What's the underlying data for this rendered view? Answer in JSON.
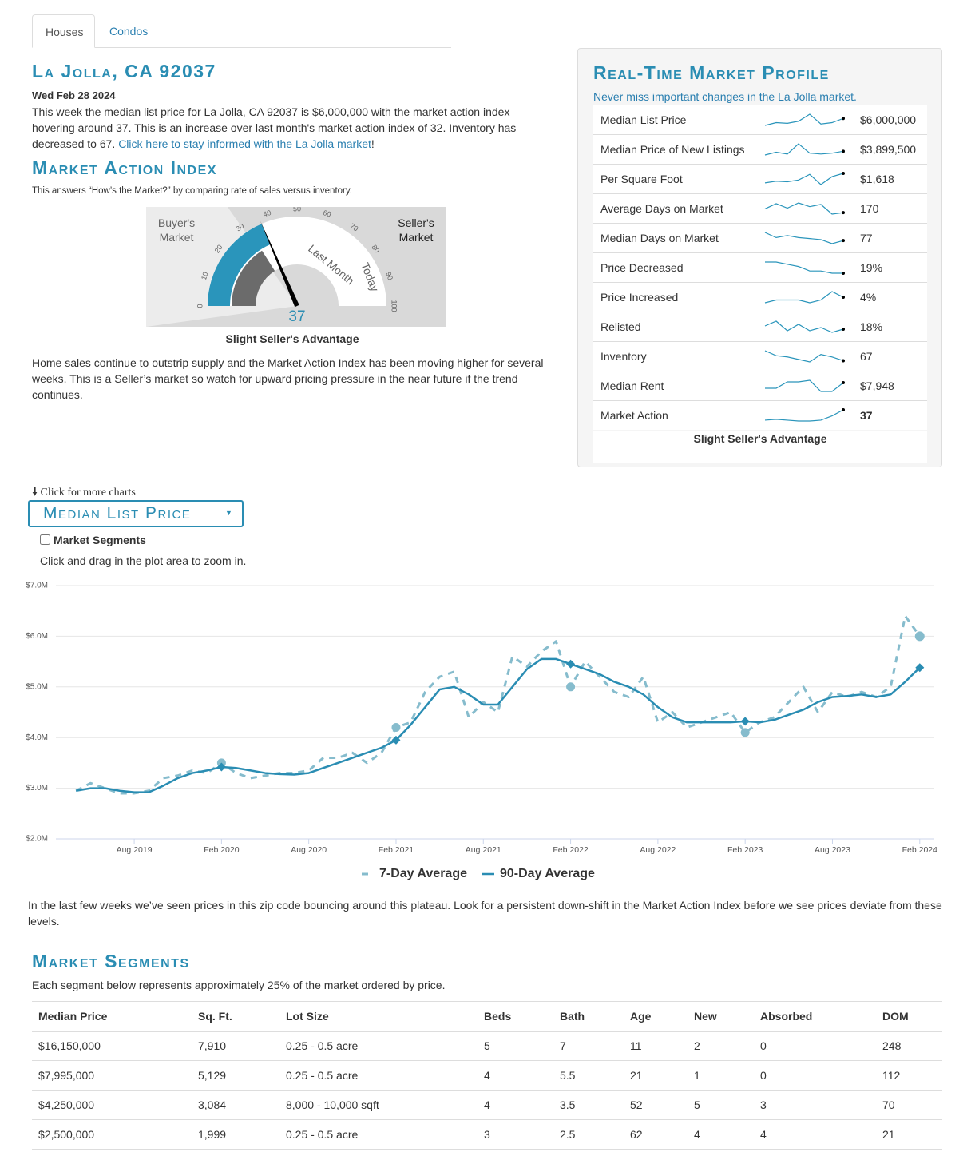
{
  "tabs": [
    "Houses",
    "Condos"
  ],
  "header": {
    "title": "La Jolla, CA 92037",
    "date": "Wed Feb 28 2024",
    "intro": "This week the median list price for La Jolla, CA 92037 is $6,000,000 with the market action index hovering around 37. This is an increase over last month's market action index of 32. Inventory has decreased to 67.",
    "link": "Click here to stay informed with the La Jolla market",
    "link_end": "!"
  },
  "market_action": {
    "heading": "Market Action Index",
    "description": "This answers “How’s the Market?” by comparing rate of sales versus inventory.",
    "gauge": {
      "left_label": "Buyer's Market",
      "right_label": "Seller's Market",
      "ticks": [
        0,
        10,
        20,
        30,
        40,
        50,
        60,
        70,
        80,
        90,
        100
      ],
      "last_month_label": "Last Month",
      "today_label": "Today",
      "last_month": 32,
      "today": 37
    },
    "verdict": "Slight Seller's Advantage",
    "summary": "Home sales continue to outstrip supply and the Market Action Index has been moving higher for several weeks. This is a Seller’s market so watch for upward pricing pressure in the near future if the trend continues."
  },
  "profile": {
    "title": "Real-Time Market Profile",
    "subtitle": "Never miss important changes in the La Jolla market.",
    "rows": [
      {
        "label": "Median List Price",
        "value": "$6,000,000",
        "trend": [
          5500000,
          5700000,
          5650000,
          5800000,
          6300000,
          5600000,
          5700000,
          6000000
        ]
      },
      {
        "label": "Median Price of New Listings",
        "value": "$3,899,500",
        "trend": [
          3500000,
          3800000,
          3600000,
          4700000,
          3700000,
          3600000,
          3700000,
          3899500
        ]
      },
      {
        "label": "Per Square Foot",
        "value": "$1,618",
        "trend": [
          1450,
          1480,
          1470,
          1500,
          1600,
          1420,
          1560,
          1618
        ]
      },
      {
        "label": "Average Days on Market",
        "value": "170",
        "trend": [
          175,
          182,
          176,
          183,
          178,
          181,
          168,
          170
        ]
      },
      {
        "label": "Median Days on Market",
        "value": "77",
        "trend": [
          85,
          80,
          82,
          80,
          79,
          78,
          74,
          77
        ]
      },
      {
        "label": "Price Decreased",
        "value": "19%",
        "trend": [
          24,
          24,
          23,
          22,
          20,
          20,
          19,
          19
        ]
      },
      {
        "label": "Price Increased",
        "value": "4%",
        "trend": [
          2,
          3,
          3,
          3,
          2,
          3,
          6,
          4
        ]
      },
      {
        "label": "Relisted",
        "value": "18%",
        "trend": [
          20,
          23,
          17,
          21,
          17,
          19,
          16,
          18
        ]
      },
      {
        "label": "Inventory",
        "value": "67",
        "trend": [
          75,
          71,
          70,
          68,
          66,
          72,
          70,
          67
        ]
      },
      {
        "label": "Median Rent",
        "value": "$7,948",
        "trend": [
          7600,
          7600,
          8000,
          8000,
          8100,
          7400,
          7400,
          7948
        ]
      },
      {
        "label": "Market Action",
        "value": "37",
        "trend": [
          25,
          26,
          25,
          24,
          24,
          25,
          30,
          37
        ]
      }
    ],
    "footer": "Slight Seller's Advantage"
  },
  "charts_nav": {
    "more": "Click for more charts",
    "selector": "Median List Price",
    "checkbox": "Market Segments",
    "hint": "Click and drag in the plot area to zoom in."
  },
  "chart_data": {
    "type": "line",
    "x": [
      "2019-04",
      "2019-05",
      "2019-06",
      "2019-07",
      "2019-08",
      "2019-09",
      "2019-10",
      "2019-11",
      "2019-12",
      "2020-01",
      "2020-02",
      "2020-03",
      "2020-04",
      "2020-05",
      "2020-06",
      "2020-07",
      "2020-08",
      "2020-09",
      "2020-10",
      "2020-11",
      "2020-12",
      "2021-01",
      "2021-02",
      "2021-03",
      "2021-04",
      "2021-05",
      "2021-06",
      "2021-07",
      "2021-08",
      "2021-09",
      "2021-10",
      "2021-11",
      "2021-12",
      "2022-01",
      "2022-02",
      "2022-03",
      "2022-04",
      "2022-05",
      "2022-06",
      "2022-07",
      "2022-08",
      "2022-09",
      "2022-10",
      "2022-11",
      "2022-12",
      "2023-01",
      "2023-02",
      "2023-03",
      "2023-04",
      "2023-05",
      "2023-06",
      "2023-07",
      "2023-08",
      "2023-09",
      "2023-10",
      "2023-11",
      "2023-12",
      "2024-01",
      "2024-02"
    ],
    "series": [
      {
        "name": "7-Day Average",
        "color": "#86bccd",
        "style": "dashed",
        "values": [
          2950000,
          3100000,
          3000000,
          2900000,
          2900000,
          2950000,
          3200000,
          3250000,
          3350000,
          3300000,
          3500000,
          3300000,
          3200000,
          3250000,
          3300000,
          3300000,
          3350000,
          3600000,
          3600000,
          3700000,
          3500000,
          3700000,
          4200000,
          4300000,
          4900000,
          5200000,
          5300000,
          4400000,
          4700000,
          4500000,
          5600000,
          5400000,
          5700000,
          5900000,
          5000000,
          5500000,
          5200000,
          4900000,
          4800000,
          5200000,
          4300000,
          4500000,
          4200000,
          4300000,
          4400000,
          4500000,
          4100000,
          4300000,
          4400000,
          4700000,
          5000000,
          4500000,
          4900000,
          4800000,
          4900000,
          4800000,
          5000000,
          6400000,
          6000000
        ]
      },
      {
        "name": "90-Day Average",
        "color": "#2a8db3",
        "style": "solid",
        "values": [
          2950000,
          3000000,
          3000000,
          2950000,
          2920000,
          2920000,
          3050000,
          3200000,
          3300000,
          3350000,
          3420000,
          3400000,
          3350000,
          3300000,
          3280000,
          3270000,
          3300000,
          3400000,
          3500000,
          3600000,
          3700000,
          3800000,
          3950000,
          4250000,
          4600000,
          4950000,
          5000000,
          4850000,
          4650000,
          4650000,
          5000000,
          5350000,
          5550000,
          5550000,
          5450000,
          5350000,
          5250000,
          5100000,
          5000000,
          4850000,
          4600000,
          4400000,
          4300000,
          4300000,
          4300000,
          4300000,
          4320000,
          4300000,
          4350000,
          4450000,
          4550000,
          4700000,
          4800000,
          4820000,
          4850000,
          4800000,
          4850000,
          5100000,
          5380000
        ]
      }
    ],
    "xlim": [
      "2019-03",
      "2024-03"
    ],
    "xticks": [
      {
        "value": "2019-08",
        "label": "Aug 2019"
      },
      {
        "value": "2020-02",
        "label": "Feb 2020"
      },
      {
        "value": "2020-08",
        "label": "Aug 2020"
      },
      {
        "value": "2021-02",
        "label": "Feb 2021"
      },
      {
        "value": "2021-08",
        "label": "Aug 2021"
      },
      {
        "value": "2022-02",
        "label": "Feb 2022"
      },
      {
        "value": "2022-08",
        "label": "Aug 2022"
      },
      {
        "value": "2023-02",
        "label": "Feb 2023"
      },
      {
        "value": "2023-08",
        "label": "Aug 2023"
      },
      {
        "value": "2024-02",
        "label": "Feb 2024"
      }
    ],
    "ylim": [
      2000000,
      7000000
    ],
    "yticks": [
      {
        "value": 2000000,
        "label": "$2.0M"
      },
      {
        "value": 3000000,
        "label": "$3.0M"
      },
      {
        "value": 4000000,
        "label": "$4.0M"
      },
      {
        "value": 5000000,
        "label": "$5.0M"
      },
      {
        "value": 6000000,
        "label": "$6.0M"
      },
      {
        "value": 7000000,
        "label": "$7.0M"
      }
    ],
    "grid": true
  },
  "chart_note": "In the last few weeks we’ve seen prices in this zip code bouncing around this plateau. Look for a persistent down-shift in the Market Action Index before we see prices deviate from these levels.",
  "segments": {
    "heading": "Market Segments",
    "description": "Each segment below represents approximately 25% of the market ordered by price.",
    "columns": [
      "Median Price",
      "Sq. Ft.",
      "Lot Size",
      "Beds",
      "Bath",
      "Age",
      "New",
      "Absorbed",
      "DOM"
    ],
    "rows": [
      [
        "$16,150,000",
        "7,910",
        "0.25 - 0.5 acre",
        "5",
        "7",
        "11",
        "2",
        "0",
        "248"
      ],
      [
        "$7,995,000",
        "5,129",
        "0.25 - 0.5 acre",
        "4",
        "5.5",
        "21",
        "1",
        "0",
        "112"
      ],
      [
        "$4,250,000",
        "3,084",
        "8,000 - 10,000 sqft",
        "4",
        "3.5",
        "52",
        "5",
        "3",
        "70"
      ],
      [
        "$2,500,000",
        "1,999",
        "0.25 - 0.5 acre",
        "3",
        "2.5",
        "62",
        "4",
        "4",
        "21"
      ]
    ]
  }
}
